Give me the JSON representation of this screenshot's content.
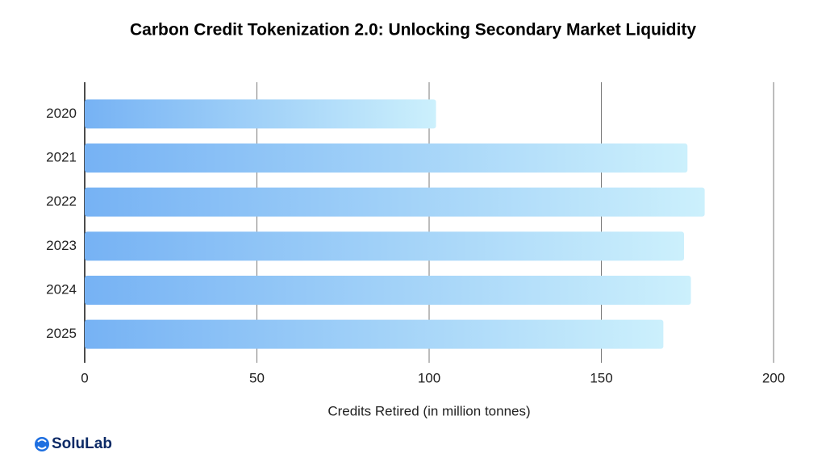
{
  "chart_data": {
    "type": "barh",
    "title": "Carbon Credit Tokenization 2.0: Unlocking Secondary Market Liquidity",
    "x_label": "Credits Retired (in million tonnes)",
    "categories": [
      "2020",
      "2021",
      "2022",
      "2023",
      "2024",
      "2025"
    ],
    "values": [
      102,
      175,
      180,
      174,
      176,
      168
    ],
    "gradient": [
      "#76b2f4",
      "#ccf0fc"
    ],
    "xlim": [
      0,
      200
    ],
    "xticks": [
      0,
      50,
      100,
      150,
      200
    ],
    "grid": true
  },
  "footer": {
    "logo": "SoluLab"
  }
}
